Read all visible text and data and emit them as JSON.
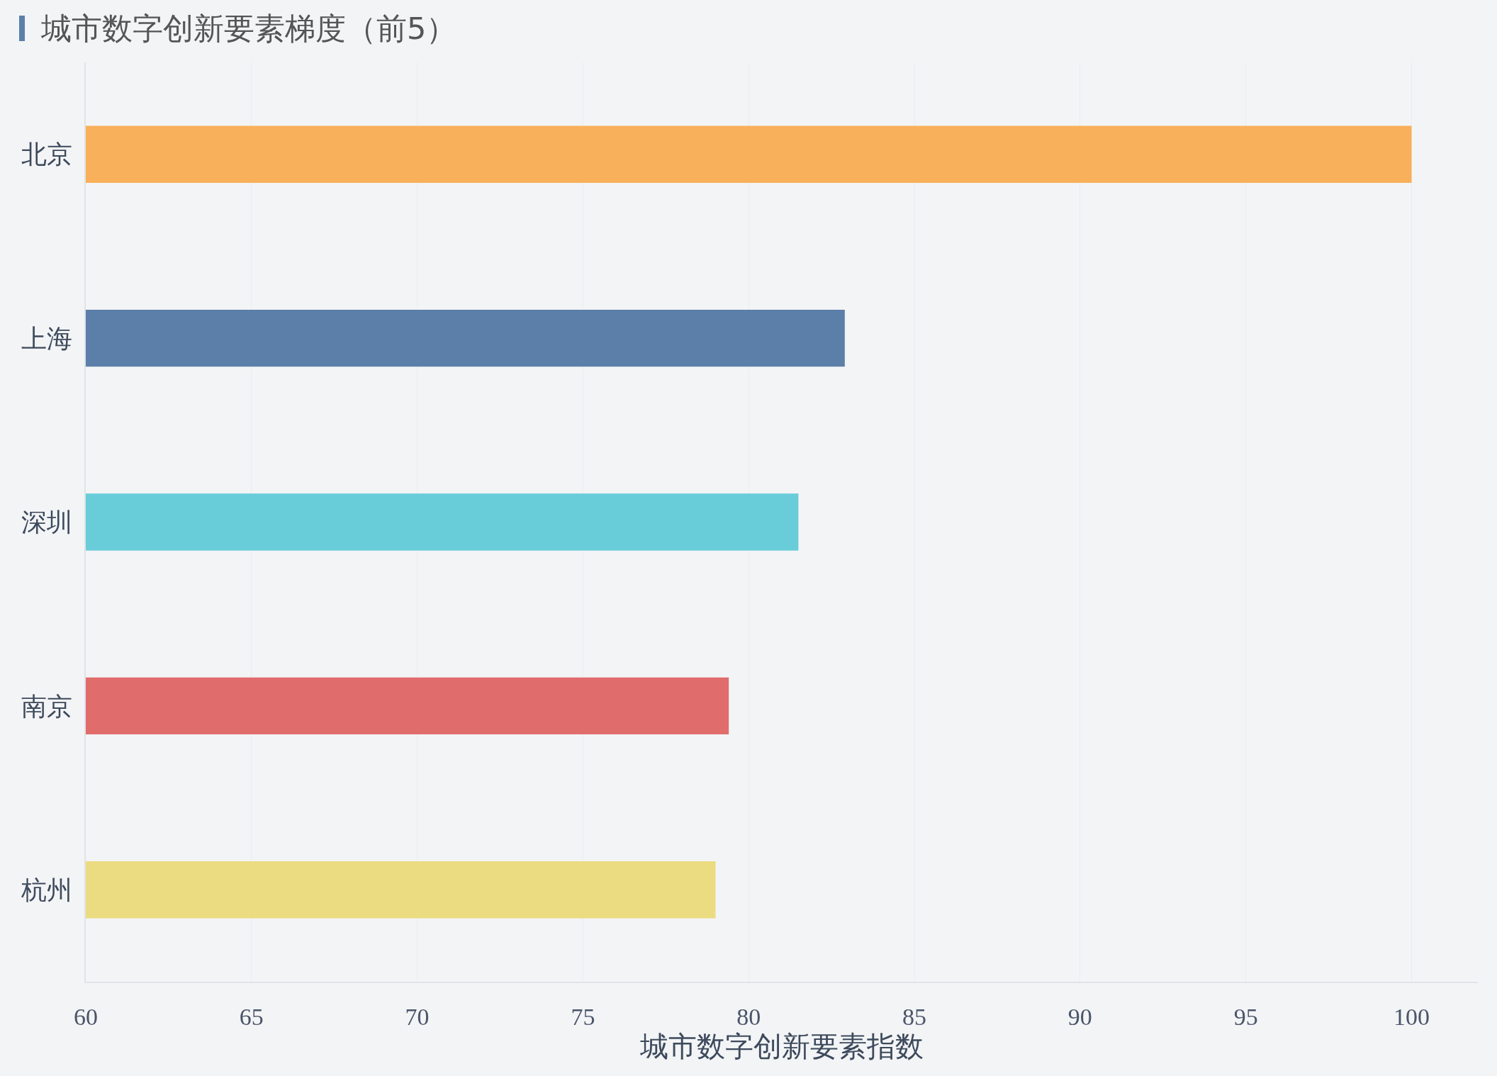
{
  "chart_data": {
    "type": "bar",
    "orientation": "horizontal",
    "title": "城市数字创新要素梯度（前5）",
    "xlabel": "城市数字创新要素指数",
    "categories": [
      "北京",
      "上海",
      "深圳",
      "南京",
      "杭州"
    ],
    "values": [
      100,
      82.9,
      81.5,
      79.4,
      79.0
    ],
    "colors": [
      "#f9b05a",
      "#5b7fa9",
      "#68cdd9",
      "#e16c6c",
      "#ebdc81"
    ],
    "xlim": [
      60,
      102
    ],
    "xticks": [
      60,
      65,
      70,
      75,
      80,
      85,
      90,
      95,
      100
    ],
    "grid": "x"
  }
}
